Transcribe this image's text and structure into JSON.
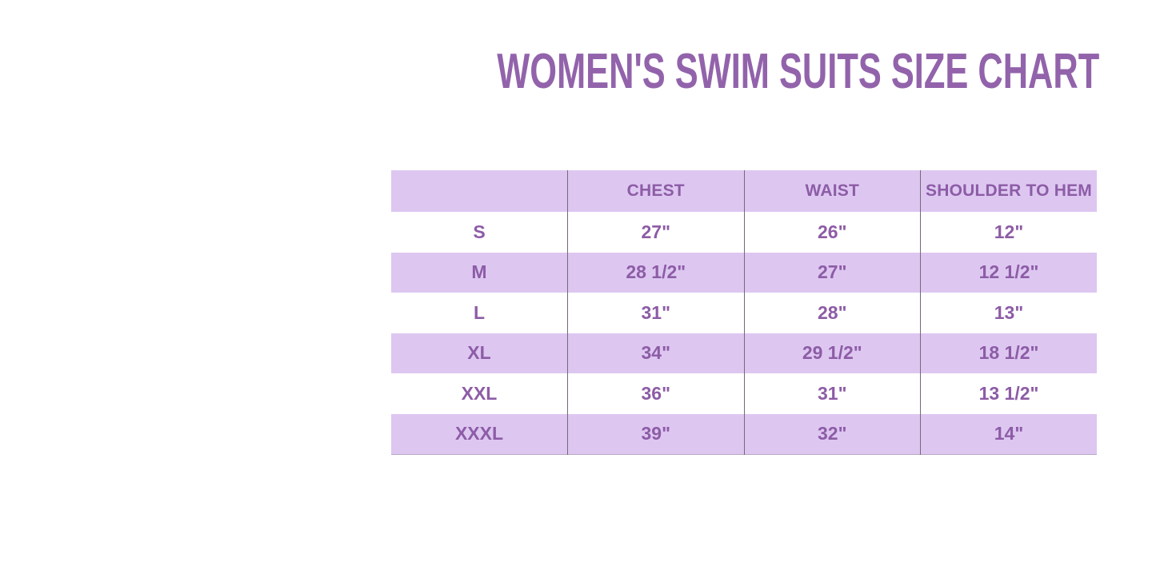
{
  "page": {
    "background": "#ffffff"
  },
  "title": {
    "text": "WOMEN'S SWIM SUITS SIZE CHART",
    "color": "#9263ab"
  },
  "table": {
    "band_color": "#ddc7f1",
    "alt_row_color": "#ffffff",
    "text_color": "#8d5ca6",
    "divider_color": "#756779",
    "header_labels": [
      "",
      "CHEST",
      "WAIST",
      "SHOULDER TO HEM"
    ]
  },
  "chart_data": {
    "type": "table",
    "title": "WOMEN'S SWIM SUITS SIZE CHART",
    "columns": [
      "",
      "CHEST",
      "WAIST",
      "SHOULDER TO HEM"
    ],
    "rows": [
      [
        "S",
        "27\"",
        "26\"",
        "12\""
      ],
      [
        "M",
        "28 1/2\"",
        "27\"",
        "12 1/2\""
      ],
      [
        "L",
        "31\"",
        "28\"",
        "13\""
      ],
      [
        "XL",
        "34\"",
        "29 1/2\"",
        "18 1/2\""
      ],
      [
        "XXL",
        "36\"",
        "31\"",
        "13 1/2\""
      ],
      [
        "XXXL",
        "39\"",
        "32\"",
        "14\""
      ]
    ],
    "layout": {
      "header_fill": "#ddc7f1",
      "alternating_rows": true,
      "units": "inches",
      "grid": "vertical-dividers-only"
    }
  }
}
